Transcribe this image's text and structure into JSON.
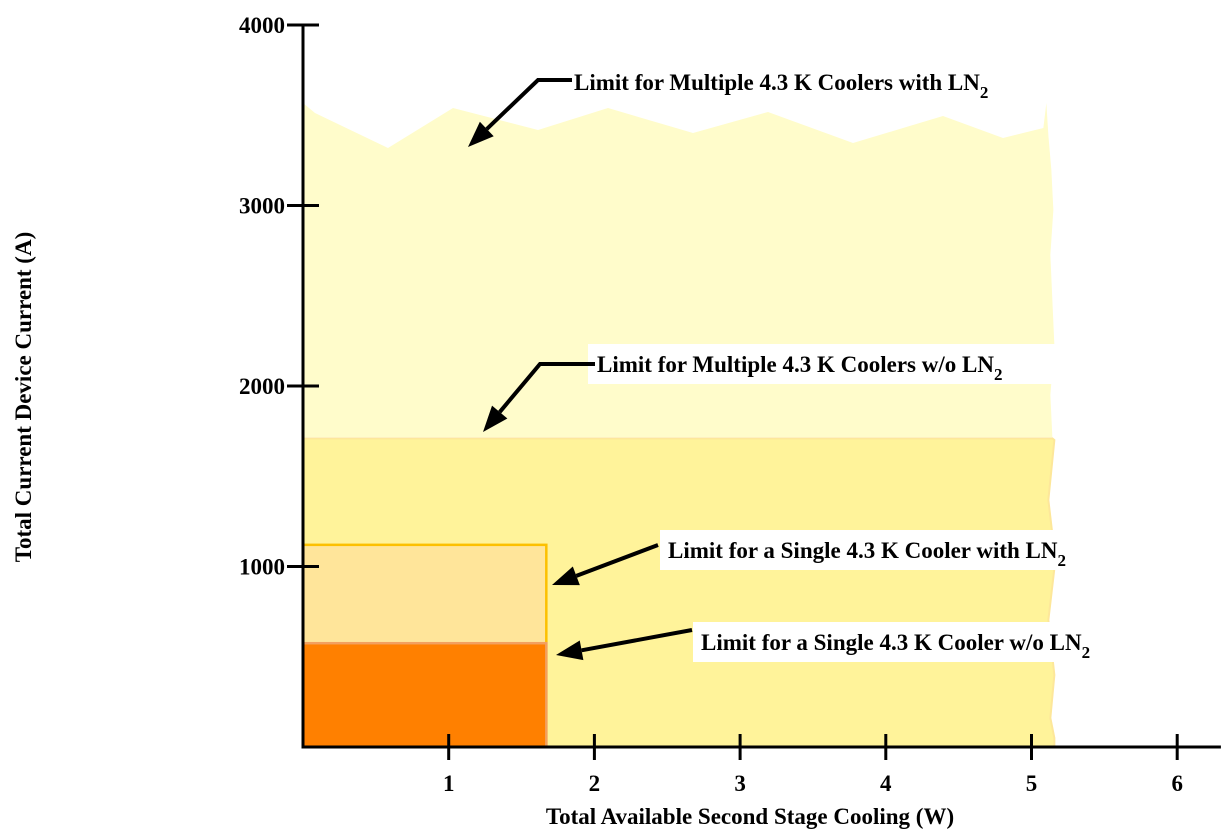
{
  "chart_data": {
    "type": "area",
    "title": "",
    "xlabel": "Total Available Second Stage Cooling (W)",
    "ylabel": "Total Current Device Current (A)",
    "xlim": [
      0,
      6.3
    ],
    "ylim": [
      0,
      4000
    ],
    "x_ticks": [
      "1",
      "2",
      "3",
      "4",
      "5",
      "6"
    ],
    "y_ticks": [
      "1000",
      "2000",
      "3000",
      "4000"
    ],
    "grid": false,
    "legend": "none",
    "regions": [
      {
        "name": "Limit for Multiple 4.3 K Coolers with LN2",
        "x": [
          0,
          5.15
        ],
        "y_top": 3500,
        "color": "#FFFCCB",
        "annotation": {
          "main": "Limit for Multiple 4.3 K Coolers with LN",
          "sub": "2"
        }
      },
      {
        "name": "Limit for Multiple 4.3 K Coolers w/o LN2",
        "x": [
          0,
          5.15
        ],
        "y_top": 1710,
        "color": "#FFF39A",
        "annotation": {
          "main": "Limit for Multiple 4.3 K Coolers w/o LN",
          "sub": "2"
        }
      },
      {
        "name": "Limit for a Single 4.3 K Cooler with LN2",
        "x": [
          0,
          1.67
        ],
        "y_top": 1120,
        "color": "#FFE59A",
        "annotation": {
          "main": "Limit for a Single 4.3 K Cooler with LN",
          "sub": "2"
        }
      },
      {
        "name": "Limit for a Single 4.3 K Cooler w/o LN2",
        "x": [
          0,
          1.67
        ],
        "y_top": 575,
        "color": "#FF8000",
        "annotation": {
          "main": "Limit for a Single 4.3 K Cooler w/o LN",
          "sub": "2"
        }
      }
    ]
  }
}
